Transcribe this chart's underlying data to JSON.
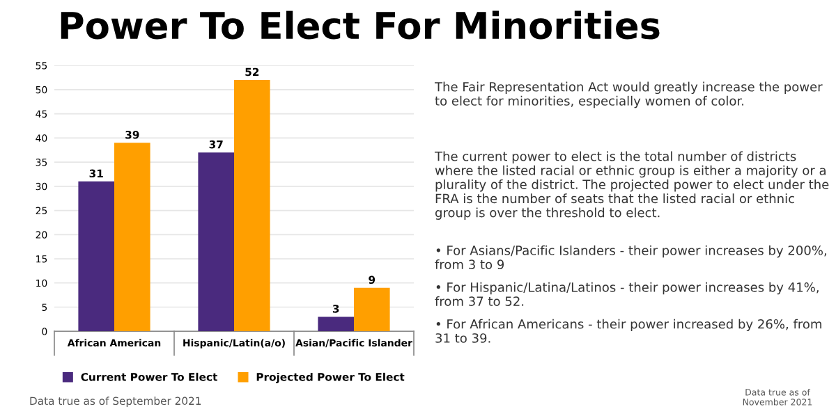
{
  "chart_data": {
    "type": "bar",
    "title": "Power To Elect For Minorities",
    "categories": [
      "African American",
      "Hispanic/Latin(a/o)",
      "Asian/Pacific Islander"
    ],
    "series": [
      {
        "name": "Current Power To Elect",
        "color": "#4a2a7e",
        "values": [
          31,
          37,
          3
        ]
      },
      {
        "name": "Projected Power To Elect",
        "color": "#ff9f00",
        "values": [
          39,
          52,
          9
        ]
      }
    ],
    "ylim": [
      0,
      55
    ],
    "yticks": [
      0,
      5,
      10,
      15,
      20,
      25,
      30,
      35,
      40,
      45,
      50,
      55
    ],
    "grid": "y",
    "legend": "bottom",
    "data_labels": true,
    "annotations": [
      "The Fair Representation Act would greatly increase the power to elect for minorities, especially women of color.",
      "The current power to elect is the total number of districts where the listed racial or ethnic group is either a majority or a plurality of the district. The projected power to elect under the FRA is the number of seats that the listed racial or ethnic group is over the threshold to elect.",
      "• For Asians/Pacific Islanders - their power increases by 200%, from 3 to 9",
      "• For Hispanic/Latina/Latinos - their power increases by 41%, from 37 to 52.",
      "• For African Americans - their power increased by 26%, from 31 to 39.",
      "Data true as of September 2021",
      "Data true as of\nNovember 2021"
    ]
  }
}
